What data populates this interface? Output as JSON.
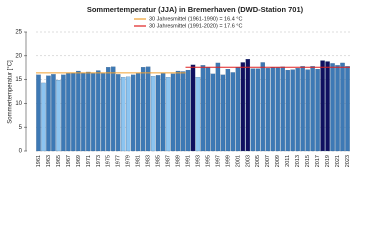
{
  "chart_data": {
    "type": "bar",
    "title": "Sommertemperatur (JJA) in Bremerhaven (DWD-Station 701)",
    "ylabel": "Sommertemperatur [°C]",
    "categories": [
      "1961",
      null,
      "1963",
      null,
      "1965",
      null,
      "1967",
      null,
      "1969",
      null,
      "1971",
      null,
      "1973",
      null,
      "1975",
      null,
      "1977",
      null,
      "1979",
      null,
      "1981",
      null,
      "1983",
      null,
      "1985",
      null,
      "1987",
      null,
      "1989",
      null,
      "1991",
      null,
      "1993",
      null,
      "1995",
      null,
      "1997",
      null,
      "1999",
      null,
      "2001",
      null,
      "2003",
      null,
      "2005",
      null,
      "2007",
      null,
      "2009",
      null,
      "2011",
      null,
      "2013",
      null,
      "2015",
      null,
      "2017",
      null,
      "2019",
      null,
      "2021",
      null,
      "2023"
    ],
    "values": [
      16.0,
      14.3,
      15.8,
      16.1,
      14.9,
      16.0,
      16.3,
      16.4,
      16.8,
      16.4,
      16.6,
      16.3,
      16.9,
      16.3,
      17.6,
      17.7,
      16.1,
      15.5,
      15.6,
      16.0,
      16.3,
      17.6,
      17.7,
      15.7,
      15.9,
      16.3,
      15.5,
      16.2,
      16.8,
      16.7,
      17.0,
      18.1,
      15.5,
      18.0,
      17.6,
      16.2,
      18.5,
      16.0,
      17.2,
      16.5,
      17.6,
      18.6,
      19.3,
      17.3,
      17.3,
      18.6,
      17.4,
      17.6,
      17.5,
      17.7,
      17.0,
      17.1,
      17.4,
      17.8,
      17.1,
      17.8,
      17.2,
      19.0,
      18.8,
      18.4,
      18.0,
      18.5,
      17.8
    ],
    "colors": [
      "#3d79b5",
      "#8cc4f0",
      "#3d79b5",
      "#3d79b5",
      "#8cc4f0",
      "#3d79b5",
      "#3d79b5",
      "#3d79b5",
      "#3d79b5",
      "#3d79b5",
      "#3d79b5",
      "#3d79b5",
      "#3d79b5",
      "#3d79b5",
      "#3d79b5",
      "#3d79b5",
      "#3d79b5",
      "#8cc4f0",
      "#8cc4f0",
      "#3d79b5",
      "#3d79b5",
      "#3d79b5",
      "#3d79b5",
      "#8cc4f0",
      "#3d79b5",
      "#3d79b5",
      "#8cc4f0",
      "#3d79b5",
      "#3d79b5",
      "#3d79b5",
      "#3d79b5",
      "#101060",
      "#8cc4f0",
      "#3d79b5",
      "#3d79b5",
      "#3d79b5",
      "#3d79b5",
      "#3d79b5",
      "#3d79b5",
      "#3d79b5",
      "#3d79b5",
      "#101060",
      "#101060",
      "#3d79b5",
      "#3d79b5",
      "#3d79b5",
      "#3d79b5",
      "#3d79b5",
      "#3d79b5",
      "#3d79b5",
      "#3d79b5",
      "#3d79b5",
      "#3d79b5",
      "#3d79b5",
      "#3d79b5",
      "#3d79b5",
      "#3d79b5",
      "#101060",
      "#101060",
      "#3d79b5",
      "#3d79b5",
      "#3d79b5",
      "#3d79b5"
    ],
    "reference_lines": [
      {
        "label": "30 Jahresmittel (1961-1990) = 16.4 °C",
        "value": 16.4,
        "color": "#f0a030",
        "span": [
          1961,
          1990
        ]
      },
      {
        "label": "30 Jahresmittel (1991-2020) = 17.6 °C",
        "value": 17.6,
        "color": "#e02020",
        "span": [
          1991,
          2023
        ]
      }
    ],
    "ylim": [
      0,
      25
    ],
    "yticks": [
      0,
      5,
      10,
      15,
      20,
      25
    ],
    "grid": true
  }
}
